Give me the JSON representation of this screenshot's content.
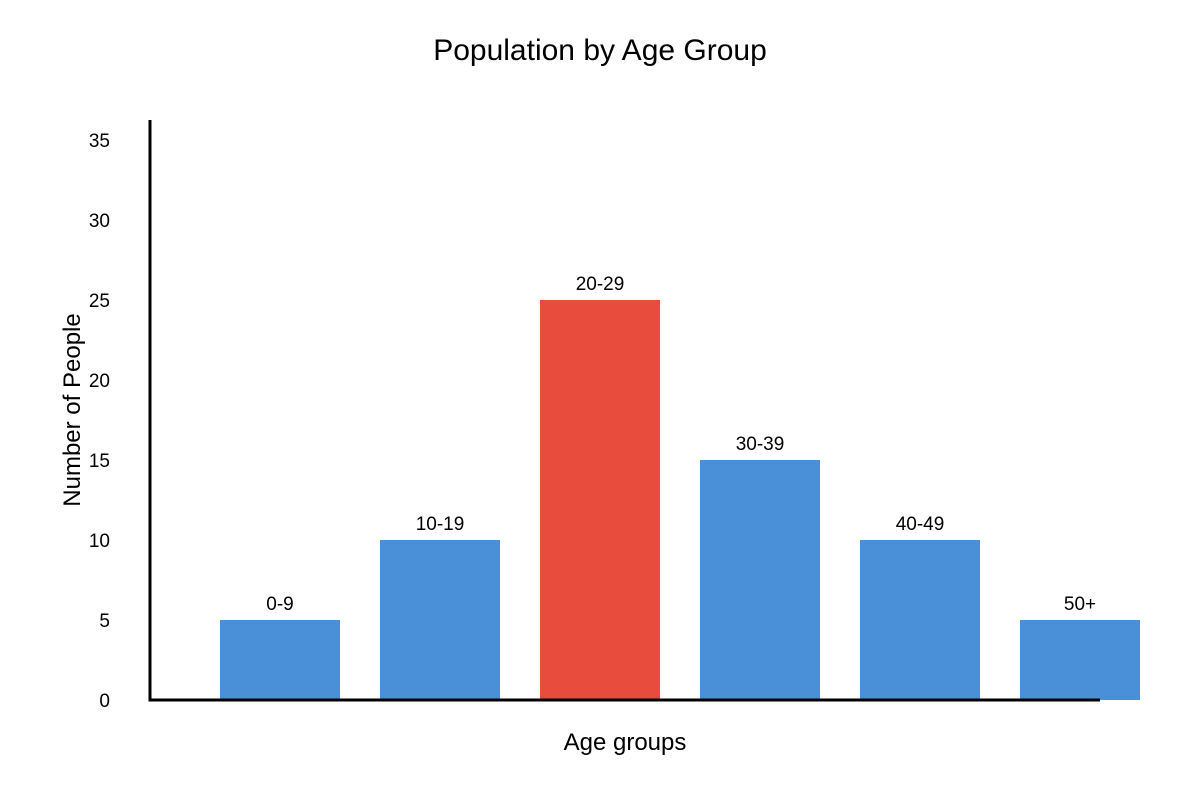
{
  "chart_data": {
    "type": "bar",
    "title": "Population by Age Group",
    "xlabel": "Age groups",
    "ylabel": "Number of People",
    "categories": [
      "0-9",
      "10-19",
      "20-29",
      "30-39",
      "40-49",
      "50+"
    ],
    "values": [
      5,
      10,
      25,
      15,
      10,
      5
    ],
    "bar_labels": [
      "0-9",
      "10-19",
      "20-29",
      "30-39",
      "40-49",
      "50+"
    ],
    "colors": [
      "#4a90d9",
      "#4a90d9",
      "#e74c3c",
      "#4a90d9",
      "#4a90d9",
      "#4a90d9"
    ],
    "ylim": [
      0,
      35
    ],
    "yticks": [
      0,
      5,
      10,
      15,
      20,
      25,
      30,
      35
    ],
    "grid": false,
    "legend": "none"
  }
}
